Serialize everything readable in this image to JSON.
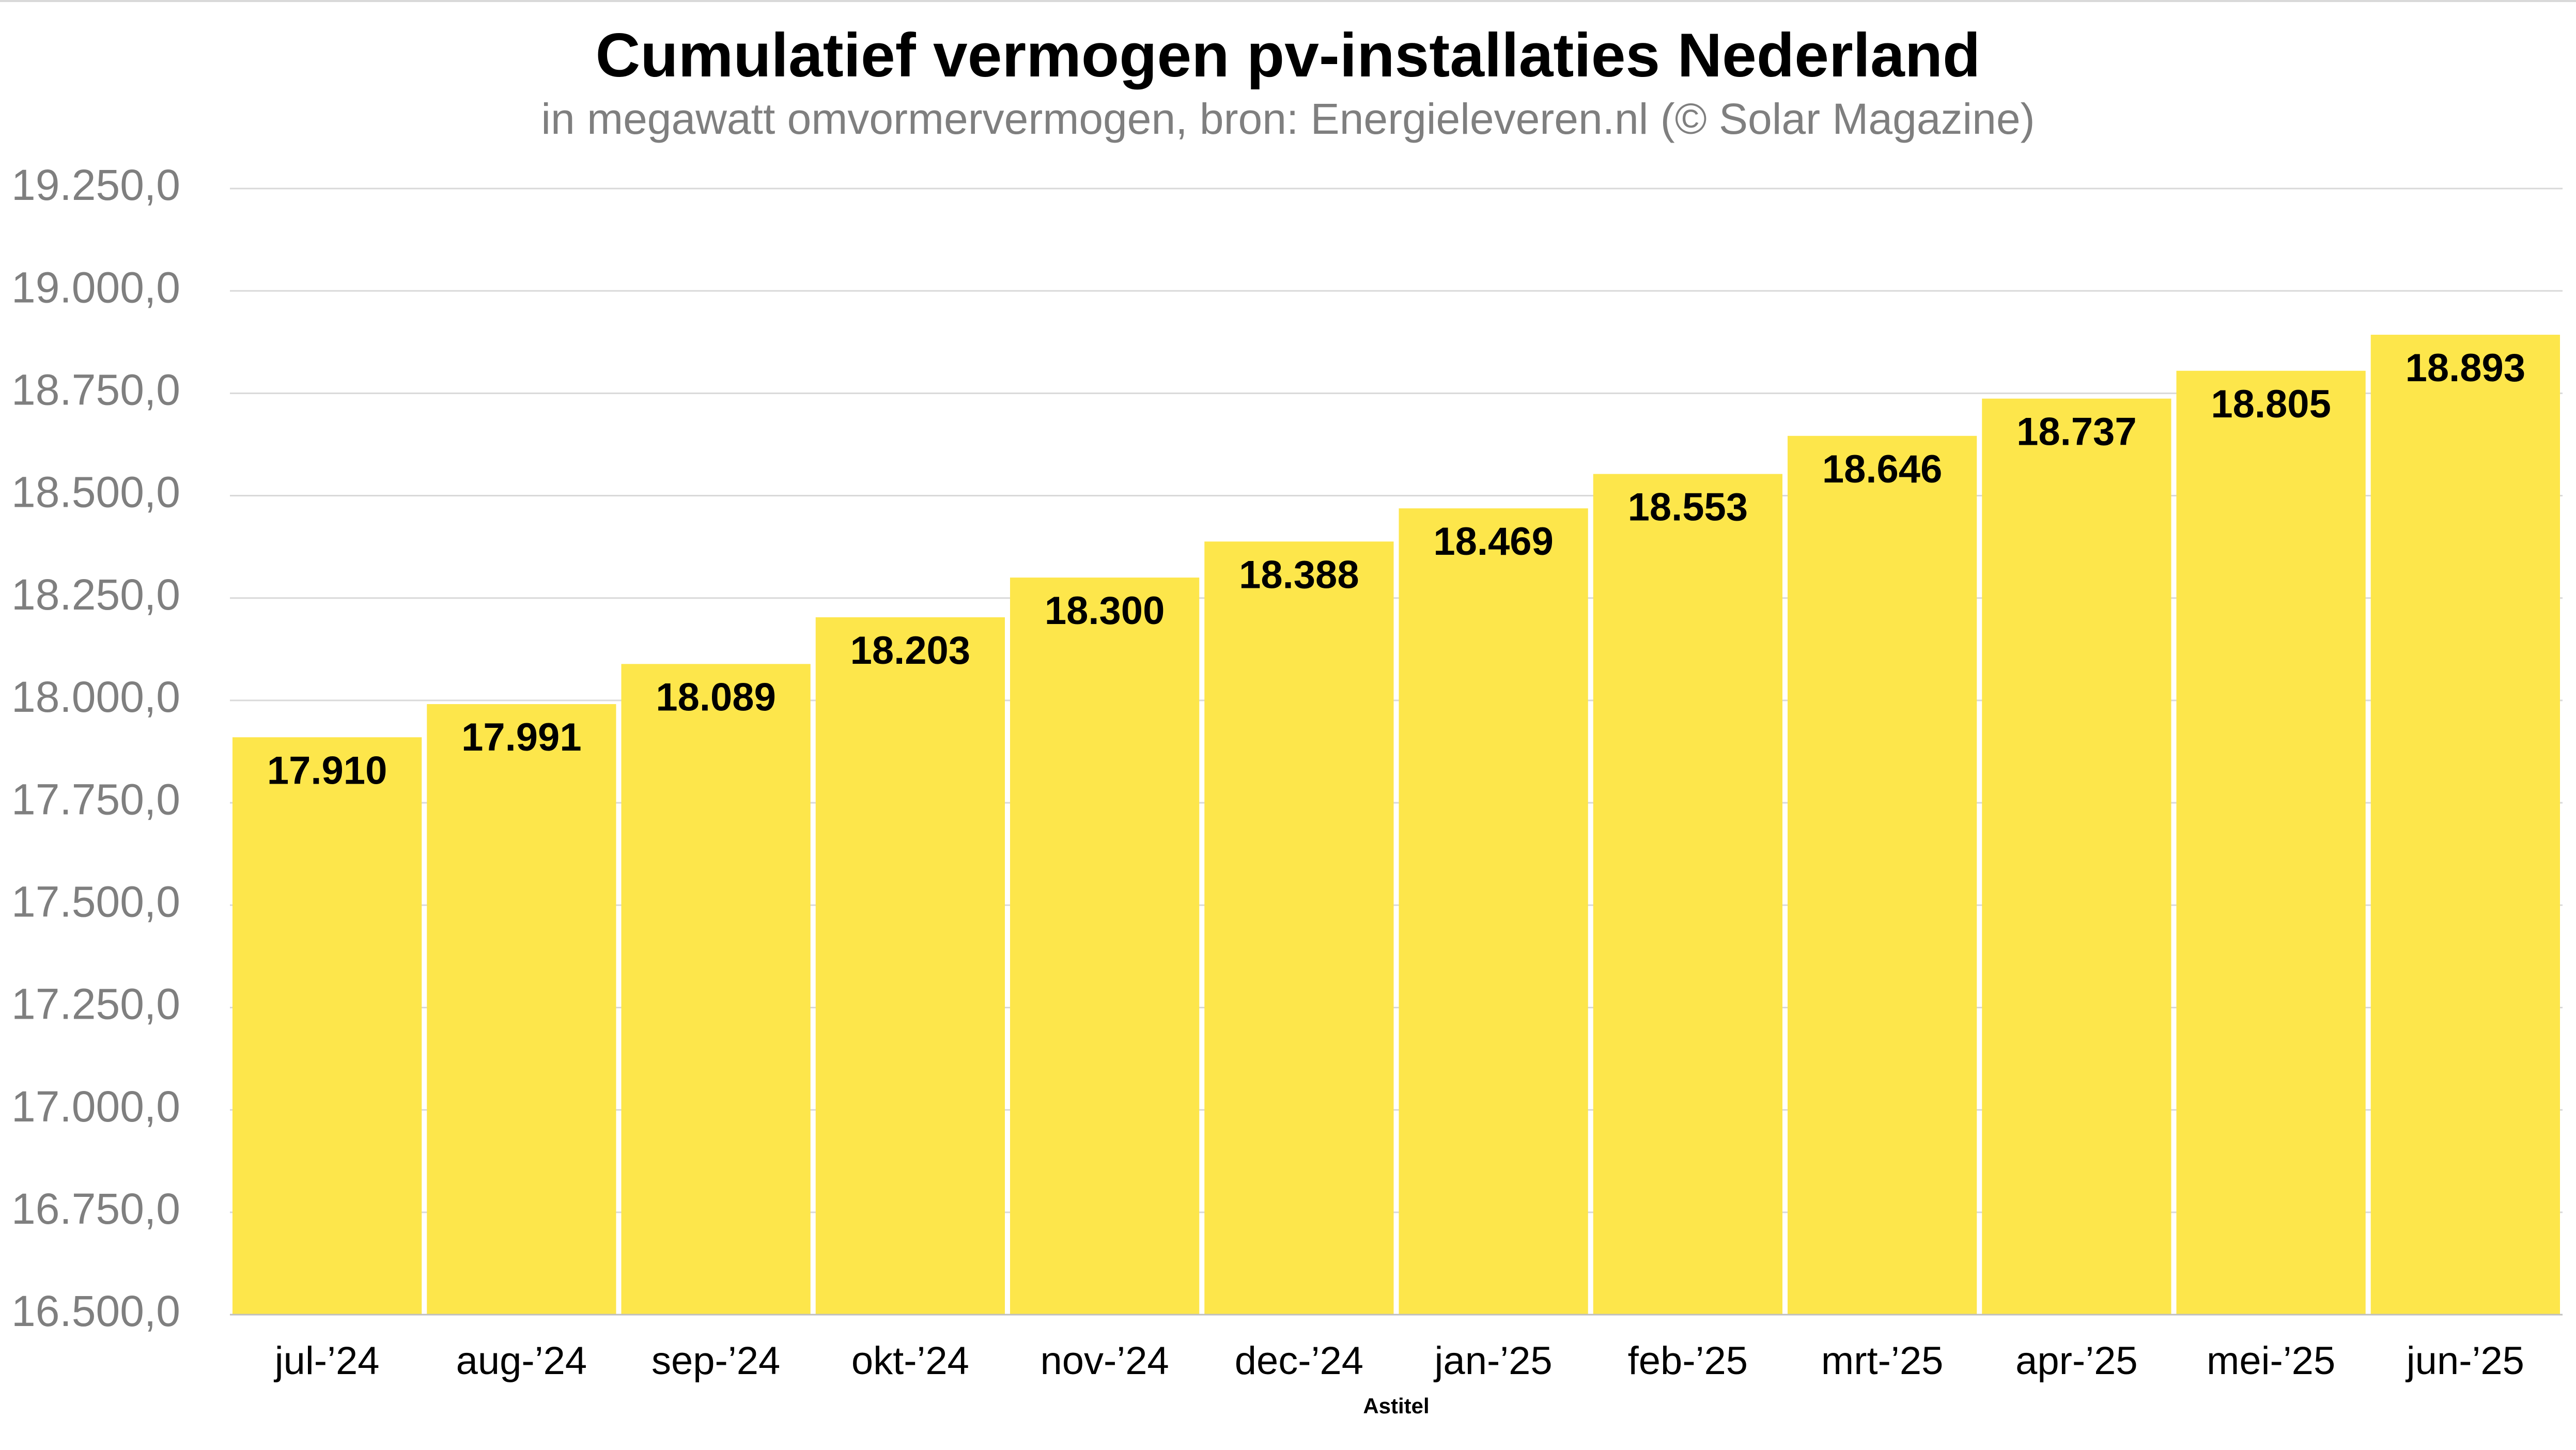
{
  "chart_data": {
    "type": "bar",
    "title": "Cumulatief vermogen pv-installaties Nederland",
    "subtitle": "in megawatt omvormervermogen, bron: Energieleveren.nl (© Solar Magazine)",
    "xlabel": "Astitel",
    "ylabel": "",
    "categories": [
      "jul-’24",
      "aug-’24",
      "sep-’24",
      "okt-’24",
      "nov-’24",
      "dec-’24",
      "jan-’25",
      "feb-’25",
      "mrt-’25",
      "apr-’25",
      "mei-’25",
      "jun-’25"
    ],
    "values": [
      17910,
      17991,
      18089,
      18203,
      18300,
      18388,
      18469,
      18553,
      18646,
      18737,
      18805,
      18893
    ],
    "value_labels": [
      "17.910",
      "17.991",
      "18.089",
      "18.203",
      "18.300",
      "18.388",
      "18.469",
      "18.553",
      "18.646",
      "18.737",
      "18.805",
      "18.893"
    ],
    "ylim": [
      16500,
      19250
    ],
    "yticks": [
      16500,
      16750,
      17000,
      17250,
      17500,
      17750,
      18000,
      18250,
      18500,
      18750,
      19000,
      19250
    ],
    "ytick_labels": [
      "16.500,0",
      "16.750,0",
      "17.000,0",
      "17.250,0",
      "17.500,0",
      "17.750,0",
      "18.000,0",
      "18.250,0",
      "18.500,0",
      "18.750,0",
      "19.000,0",
      "19.250,0"
    ],
    "grid": true,
    "legend": "none",
    "bar_color": "#FDE64B"
  }
}
